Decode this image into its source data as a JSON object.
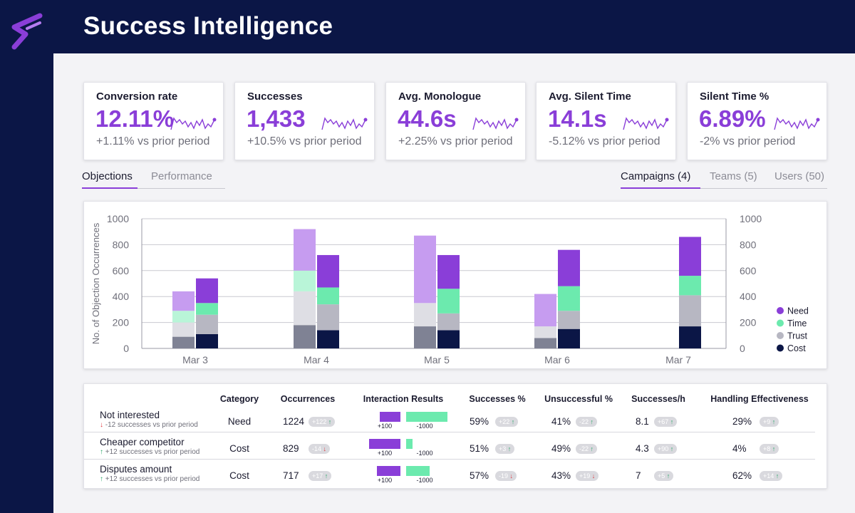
{
  "app": {
    "title": "Success Intelligence"
  },
  "kpis": [
    {
      "title": "Conversion rate",
      "value": "12.11%",
      "delta": "+1.11% vs prior period"
    },
    {
      "title": "Successes",
      "value": "1,433",
      "delta": "+10.5% vs prior period"
    },
    {
      "title": "Avg. Monologue",
      "value": "44.6s",
      "delta": "+2.25% vs prior period"
    },
    {
      "title": "Avg. Silent Time",
      "value": "14.1s",
      "delta": "-5.12% vs prior period"
    },
    {
      "title": "Silent Time %",
      "value": "6.89%",
      "delta": "-2% vs prior period"
    }
  ],
  "tabs_left": [
    {
      "label": "Objections",
      "active": true
    },
    {
      "label": "Performance",
      "active": false
    }
  ],
  "tabs_right": [
    {
      "label": "Campaigns (4)",
      "active": true
    },
    {
      "label": "Teams (5)",
      "active": false
    },
    {
      "label": "Users (50)",
      "active": false
    }
  ],
  "colors": {
    "need": "#8a3ed8",
    "need_light": "#c69cf0",
    "time": "#6ceaae",
    "time_light": "#b9f5d8",
    "trust": "#b7b7c2",
    "trust_light": "#dedee4",
    "cost": "#0b1646",
    "cost_light": "#7f8294"
  },
  "chart_data": {
    "type": "bar",
    "ylabel": "No. of Objection Occurrences",
    "ylim": [
      0,
      1000
    ],
    "yticks": [
      0,
      200,
      400,
      600,
      800,
      1000
    ],
    "categories": [
      "Mar 3",
      "Mar 4",
      "Mar 5",
      "Mar 6",
      "Mar 7"
    ],
    "stacked": true,
    "legend_position": "right",
    "groups": [
      {
        "name": "prior period",
        "series": [
          {
            "name": "Cost",
            "values": [
              90,
              180,
              170,
              80,
              0
            ]
          },
          {
            "name": "Trust",
            "values": [
              110,
              260,
              180,
              90,
              0
            ]
          },
          {
            "name": "Time",
            "values": [
              90,
              160,
              0,
              0,
              0
            ]
          },
          {
            "name": "Need",
            "values": [
              150,
              320,
              520,
              250,
              0
            ]
          }
        ]
      },
      {
        "name": "current period",
        "series": [
          {
            "name": "Cost",
            "values": [
              110,
              140,
              140,
              150,
              170
            ]
          },
          {
            "name": "Trust",
            "values": [
              150,
              200,
              130,
              140,
              240
            ]
          },
          {
            "name": "Time",
            "values": [
              90,
              130,
              190,
              190,
              150
            ]
          },
          {
            "name": "Need",
            "values": [
              190,
              250,
              260,
              280,
              300
            ]
          }
        ]
      }
    ],
    "legend": [
      "Need",
      "Time",
      "Trust",
      "Cost"
    ]
  },
  "table": {
    "headers": [
      "Category",
      "Occurrences",
      "Interaction Results",
      "Successes %",
      "Unsuccessful %",
      "Successes/h",
      "Handling Effectiveness"
    ],
    "rows": [
      {
        "objection": "Not interested",
        "sub": "-12 successes vs prior period",
        "sub_dir": "down",
        "category": "Need",
        "occurrences": "1224",
        "occ_badge": "+122",
        "occ_dir": "up",
        "interaction_pos_label": "+100",
        "interaction_neg_label": "-1000",
        "interaction_pos": 0.41,
        "interaction_neg": 0.58,
        "successes": "59%",
        "succ_badge": "+22",
        "succ_dir": "up",
        "unsuccessful": "41%",
        "unsucc_badge": "-22",
        "unsucc_dir": "up",
        "per_hour": "8.1",
        "ph_badge": "+67",
        "ph_dir": "up",
        "effectiveness": "29%",
        "eff_badge": "+9",
        "eff_dir": "up"
      },
      {
        "objection": "Cheaper competitor",
        "sub": "+12 successes vs prior period",
        "sub_dir": "up",
        "category": "Cost",
        "occurrences": "829",
        "occ_badge": "-14",
        "occ_dir": "down",
        "interaction_pos_label": "+100",
        "interaction_neg_label": "-1000",
        "interaction_pos": 0.63,
        "interaction_neg": 0.09,
        "successes": "51%",
        "succ_badge": "+3",
        "succ_dir": "up",
        "unsuccessful": "49%",
        "unsucc_badge": "-22",
        "unsucc_dir": "up",
        "per_hour": "4.3",
        "ph_badge": "+90",
        "ph_dir": "up",
        "effectiveness": "4%",
        "eff_badge": "+8",
        "eff_dir": "up"
      },
      {
        "objection": "Disputes amount",
        "sub": "+12 successes vs prior period",
        "sub_dir": "up",
        "category": "Cost",
        "occurrences": "717",
        "occ_badge": "+17",
        "occ_dir": "up",
        "interaction_pos_label": "+100",
        "interaction_neg_label": "-1000",
        "interaction_pos": 0.47,
        "interaction_neg": 0.33,
        "successes": "57%",
        "succ_badge": "-19",
        "succ_dir": "down",
        "unsuccessful": "43%",
        "unsucc_badge": "+19",
        "unsucc_dir": "down",
        "per_hour": "7",
        "ph_badge": "+5",
        "ph_dir": "up",
        "effectiveness": "62%",
        "eff_badge": "+14",
        "eff_dir": "up"
      }
    ]
  }
}
